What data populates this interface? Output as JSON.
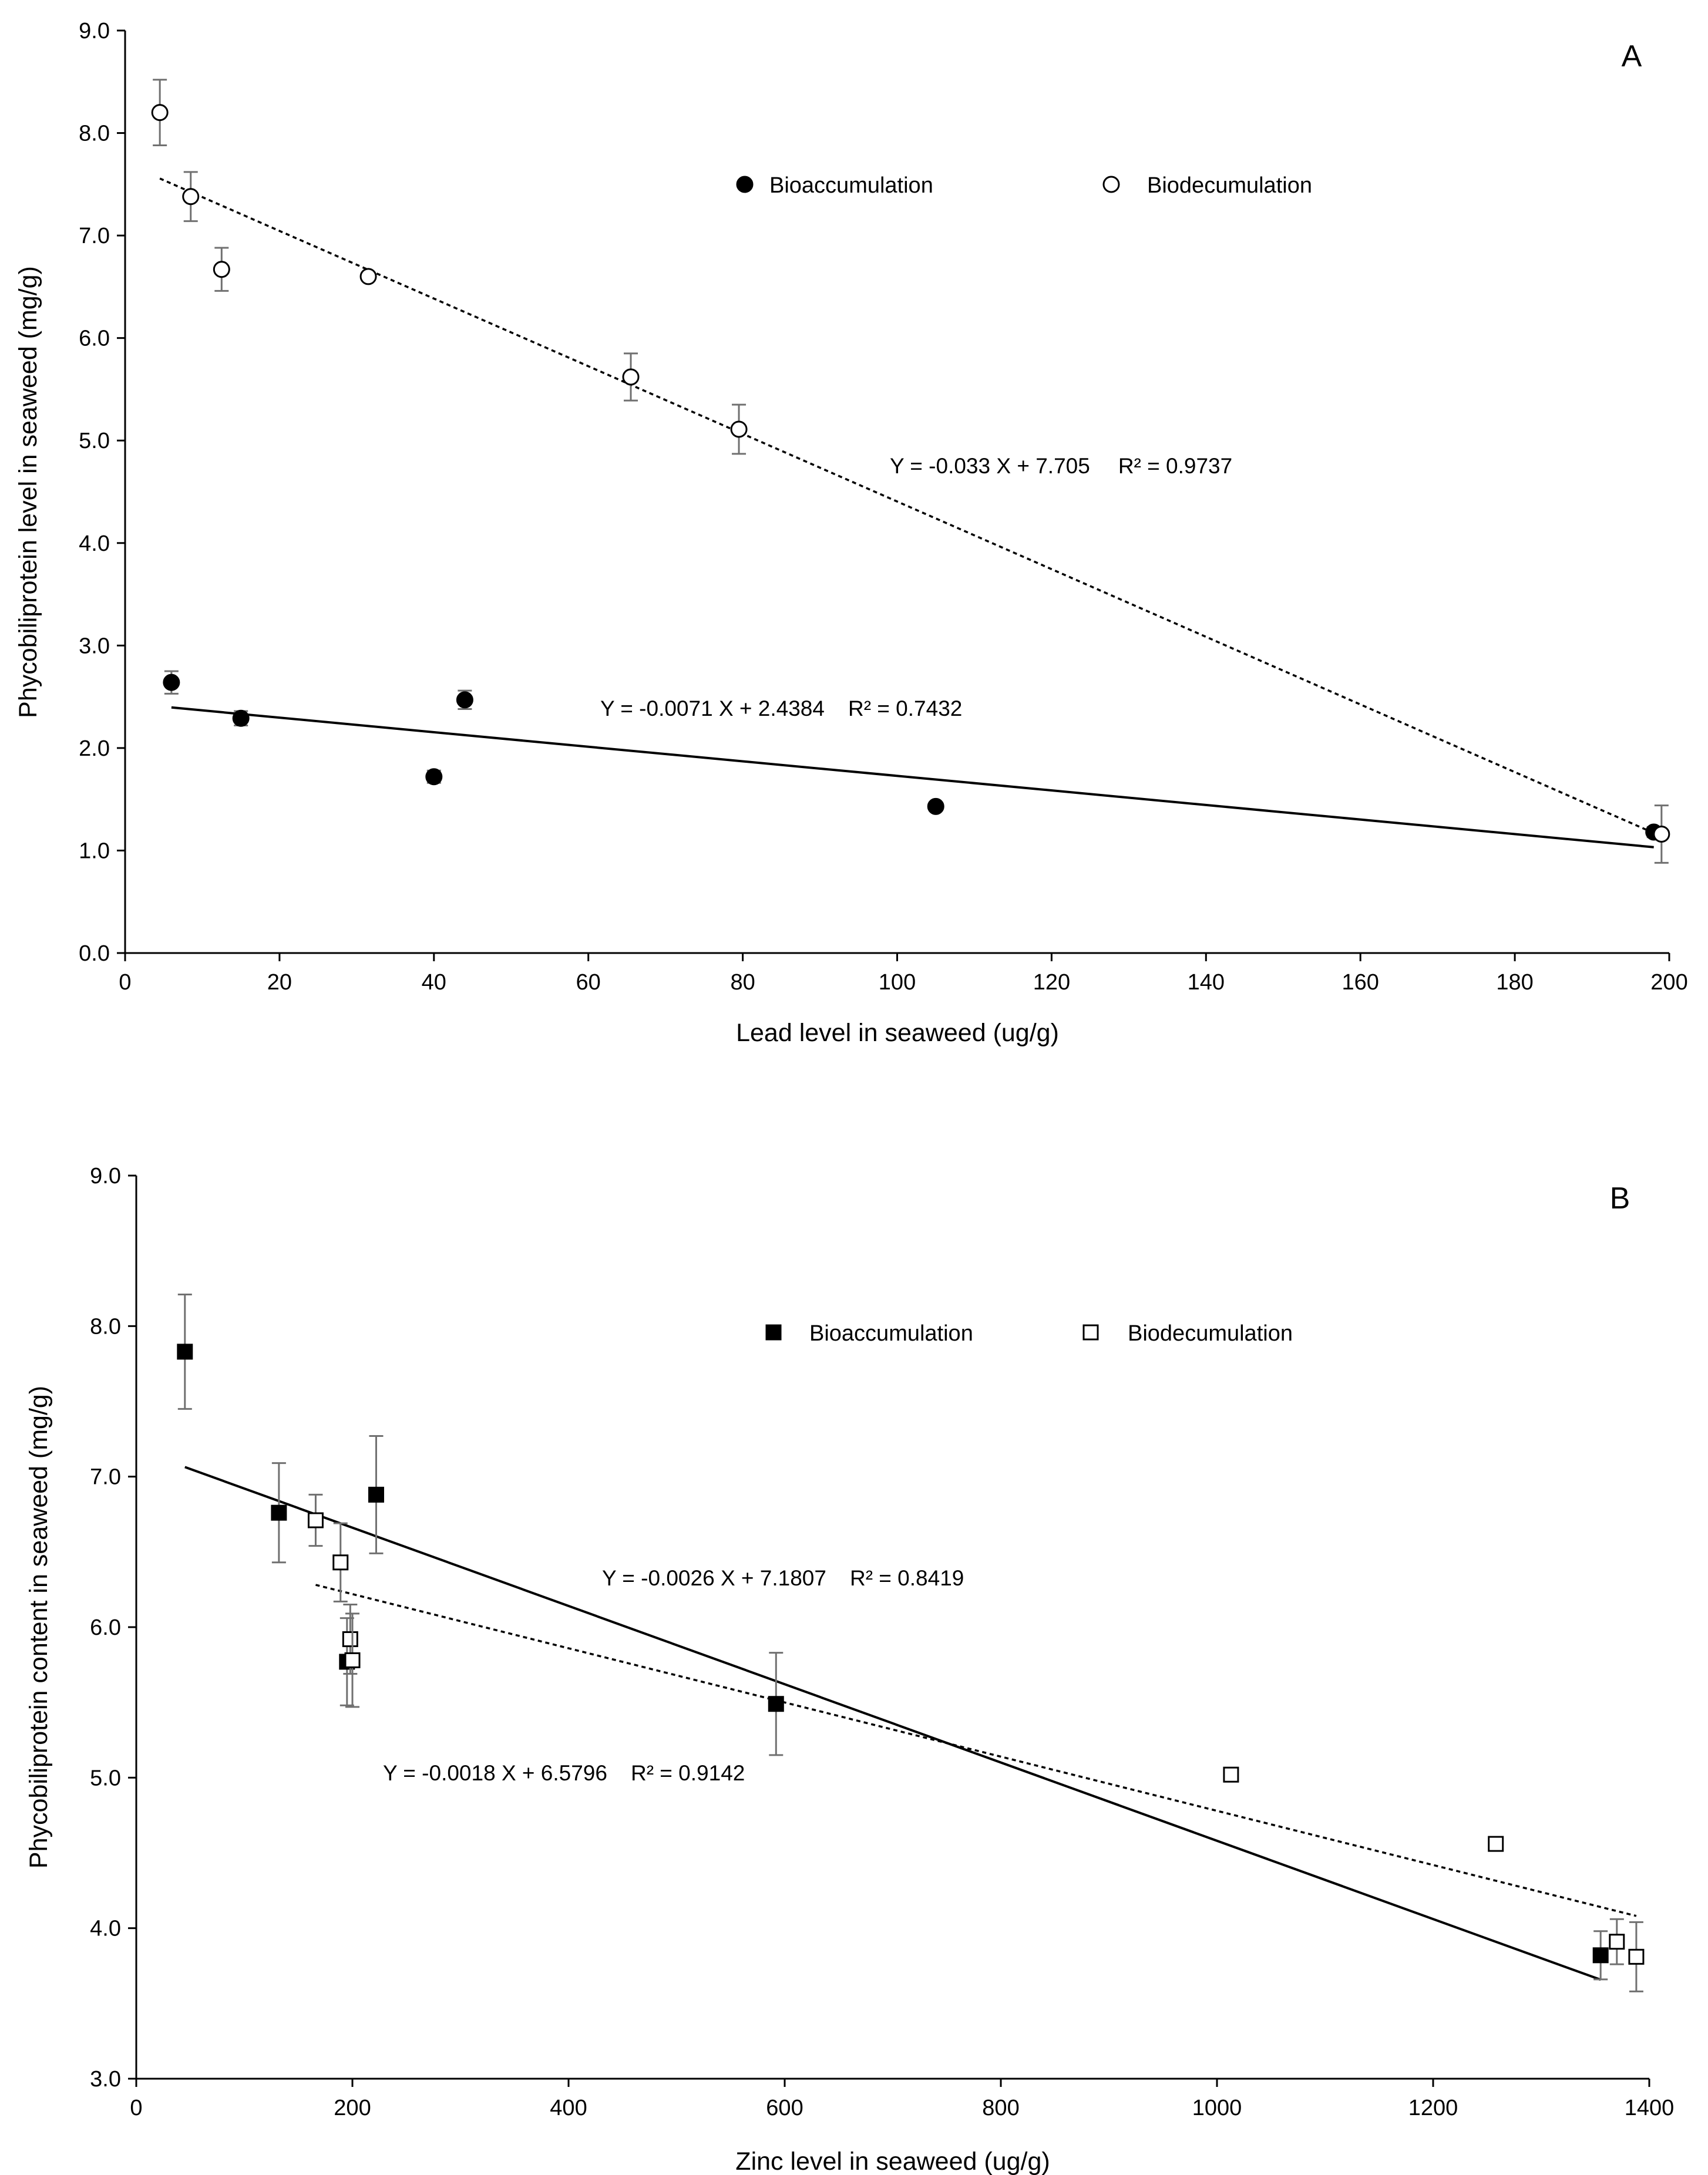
{
  "chart_data": [
    {
      "id": "A",
      "type": "scatter",
      "panel_label": "A",
      "xlabel": "Lead level in seaweed (ug/g)",
      "ylabel": "Phycobiliprotein level in seaweed (mg/g)",
      "xlim": [
        0,
        200
      ],
      "ylim": [
        0,
        9
      ],
      "xticks": [
        0,
        20,
        40,
        60,
        80,
        100,
        120,
        140,
        160,
        180,
        200
      ],
      "xtick_labels": [
        "0",
        "20",
        "40",
        "60",
        "80",
        "100",
        "120",
        "140",
        "160",
        "180",
        "200"
      ],
      "yticks": [
        0,
        1,
        2,
        3,
        4,
        5,
        6,
        7,
        8,
        9
      ],
      "ytick_labels": [
        "0.0",
        "1.0",
        "2.0",
        "3.0",
        "4.0",
        "5.0",
        "6.0",
        "7.0",
        "8.0",
        "9.0"
      ],
      "grid": false,
      "legend_position": "top",
      "series": [
        {
          "name": "Bioaccumulation",
          "marker": "circle-filled",
          "x": [
            6,
            15,
            40,
            44,
            105,
            198
          ],
          "y": [
            2.64,
            2.29,
            1.72,
            2.47,
            1.43,
            1.18
          ],
          "err": [
            0.11,
            0.07,
            0.06,
            0.09,
            0.04,
            0.05
          ]
        },
        {
          "name": "Biodecumulation",
          "marker": "circle-open",
          "x": [
            4.5,
            8.5,
            12.5,
            31.5,
            65.5,
            79.5,
            199
          ],
          "y": [
            8.2,
            7.38,
            6.67,
            6.6,
            5.62,
            5.11,
            1.16
          ],
          "err": [
            0.32,
            0.24,
            0.21,
            0.03,
            0.23,
            0.24,
            0.28
          ]
        }
      ],
      "trendlines": [
        {
          "series": "Bioaccumulation",
          "style": "solid",
          "slope": -0.0071,
          "intercept": 2.4384,
          "x_range": [
            6,
            198
          ],
          "equation": "Y = -0.0071 X + 2.4384",
          "r2": "R² = 0.7432"
        },
        {
          "series": "Biodecumulation",
          "style": "dashed",
          "slope": -0.033,
          "intercept": 7.705,
          "x_range": [
            4.5,
            199
          ],
          "equation": "Y = -0.033 X + 7.705",
          "r2": "R² = 0.9737"
        }
      ]
    },
    {
      "id": "B",
      "type": "scatter",
      "panel_label": "B",
      "xlabel": "Zinc level in seaweed (ug/g)",
      "ylabel": "Phycobiliprotein content in seaweed (mg/g)",
      "xlim": [
        0,
        1400
      ],
      "ylim": [
        3,
        9
      ],
      "xticks": [
        0,
        200,
        400,
        600,
        800,
        1000,
        1200,
        1400
      ],
      "xtick_labels": [
        "0",
        "200",
        "400",
        "600",
        "800",
        "1000",
        "1200",
        "1400"
      ],
      "yticks": [
        3,
        4,
        5,
        6,
        7,
        8,
        9
      ],
      "ytick_labels": [
        "3.0",
        "4.0",
        "5.0",
        "6.0",
        "7.0",
        "8.0",
        "9.0"
      ],
      "grid": false,
      "legend_position": "top",
      "series": [
        {
          "name": "Bioaccumulation",
          "marker": "square-filled",
          "x": [
            45,
            132,
            195,
            222,
            592,
            1355
          ],
          "y": [
            7.83,
            6.76,
            5.77,
            6.88,
            5.49,
            3.82
          ],
          "err": [
            0.38,
            0.33,
            0.29,
            0.39,
            0.34,
            0.16
          ]
        },
        {
          "name": "Biodecumulation",
          "marker": "square-open",
          "x": [
            166,
            189,
            198,
            200,
            1013,
            1258,
            1370,
            1388
          ],
          "y": [
            6.71,
            6.43,
            5.92,
            5.78,
            5.02,
            4.56,
            3.91,
            3.81
          ],
          "err": [
            0.17,
            0.26,
            0.23,
            0.31,
            0.0,
            0.0,
            0.15,
            0.23
          ]
        }
      ],
      "trendlines": [
        {
          "series": "Bioaccumulation",
          "style": "solid",
          "slope": -0.0026,
          "intercept": 7.1807,
          "x_range": [
            45,
            1355
          ],
          "equation": "Y = -0.0026 X + 7.1807",
          "r2": "R² = 0.8419"
        },
        {
          "series": "Biodecumulation",
          "style": "dashed",
          "slope": -0.0018,
          "intercept": 6.5796,
          "x_range": [
            166,
            1388
          ],
          "equation": "Y = -0.0018 X + 6.5796",
          "r2": "R² = 0.9142"
        }
      ]
    }
  ]
}
